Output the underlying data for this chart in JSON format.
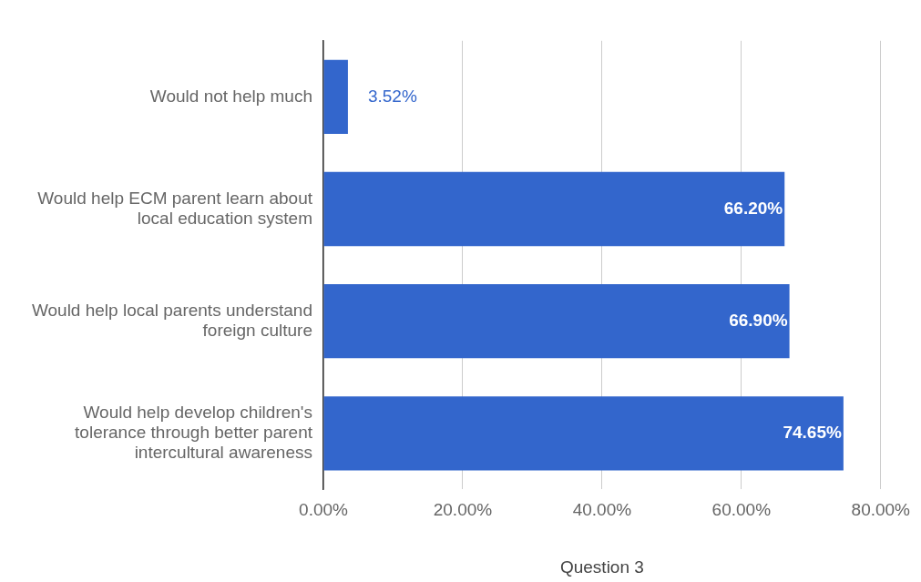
{
  "chart_data": {
    "type": "bar",
    "orientation": "horizontal",
    "xlabel": "Question 3",
    "categories": [
      "Would not help much",
      "Would help ECM parent learn about local education system",
      "Would help local parents understand foreign culture",
      "Would help develop children's tolerance through better parent intercultural awareness"
    ],
    "values": [
      3.52,
      66.2,
      66.9,
      74.65
    ],
    "value_labels": [
      "3.52%",
      "66.20%",
      "66.90%",
      "74.65%"
    ],
    "color": "#3366cc",
    "xlim": [
      0,
      80
    ],
    "xticks": [
      {
        "value": 0,
        "label": "0.00%"
      },
      {
        "value": 20,
        "label": "20.00%"
      },
      {
        "value": 40,
        "label": "40.00%"
      },
      {
        "value": 60,
        "label": "60.00%"
      },
      {
        "value": 80,
        "label": "80.00%"
      }
    ],
    "grid": "x",
    "legend": false
  }
}
